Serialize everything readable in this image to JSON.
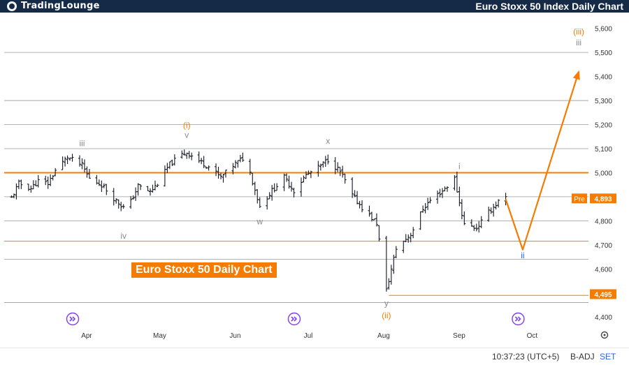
{
  "header": {
    "logo_text": "TradingLounge",
    "logo_icon": "tradinglounge-logo-icon",
    "title": "Euro Stoxx 50 Index Daily Chart"
  },
  "series_label": "Euro Stoxx 50 Daily Chart",
  "footer": {
    "time": "10:37:23 (UTC+5)",
    "adj": "B-ADJ",
    "session": "SET",
    "settings_icon": "gear-icon"
  },
  "colors": {
    "header_bg": "#152a47",
    "accent_orange": "#f57c00",
    "label_gray": "#8a8a8a",
    "bar_black": "#131722",
    "event_purple": "#7e3ff2"
  },
  "chart_data": {
    "type": "ohlc",
    "ylim": [
      4360,
      5660
    ],
    "y_ticks": [
      4400,
      4500,
      4600,
      4700,
      4800,
      4900,
      5000,
      5100,
      5200,
      5300,
      5400,
      5500,
      5600
    ],
    "y_tick_labels": [
      "4,400",
      "4,600",
      "4,700",
      "4,800",
      "5,000",
      "5,100",
      "5,200",
      "5,300",
      "5,400",
      "5,500",
      "5,600"
    ],
    "gridlines": [
      4460,
      4640,
      4800,
      4900,
      5100,
      5200,
      5300,
      5500
    ],
    "x_labels": [
      "Apr",
      "May",
      "Jun",
      "Jul",
      "Aug",
      "Sep",
      "Oct"
    ],
    "x_label_dates": [
      "2024-04-01",
      "2024-05-01",
      "2024-06-01",
      "2024-07-01",
      "2024-08-01",
      "2024-09-01",
      "2024-10-01"
    ],
    "x_range": [
      "2024-03-01",
      "2024-10-27"
    ],
    "price_labels": [
      {
        "text": "Pre",
        "value": 4893
      },
      {
        "text": "4,893",
        "value": 4893
      },
      {
        "text": "4,495",
        "value": 4495
      }
    ],
    "horizontal_levels": [
      {
        "value": 5000,
        "color": "#f57c00",
        "width": "thick"
      },
      {
        "value": 4715,
        "color": "#f57c00",
        "width": "thin"
      },
      {
        "value": 4490,
        "color": "#f57c00",
        "width": "thin",
        "from": "2024-08-06"
      }
    ],
    "bar_anchors": [
      [
        "2024-03-04",
        4895
      ],
      [
        "2024-03-07",
        4955
      ],
      [
        "2024-03-12",
        4935
      ],
      [
        "2024-03-15",
        4965
      ],
      [
        "2024-03-19",
        4955
      ],
      [
        "2024-03-22",
        5010
      ],
      [
        "2024-03-27",
        5065
      ],
      [
        "2024-04-02",
        5030
      ],
      [
        "2024-04-05",
        4975
      ],
      [
        "2024-04-10",
        4950
      ],
      [
        "2024-04-15",
        4895
      ],
      [
        "2024-04-19",
        4855
      ],
      [
        "2024-04-22",
        4880
      ],
      [
        "2024-04-25",
        4945
      ],
      [
        "2024-04-30",
        4920
      ],
      [
        "2024-05-03",
        4955
      ],
      [
        "2024-05-08",
        5035
      ],
      [
        "2024-05-13",
        5075
      ],
      [
        "2024-05-15",
        5085
      ],
      [
        "2024-05-20",
        5050
      ],
      [
        "2024-05-24",
        5025
      ],
      [
        "2024-05-29",
        4980
      ],
      [
        "2024-06-03",
        5030
      ],
      [
        "2024-06-07",
        5060
      ],
      [
        "2024-06-10",
        5000
      ],
      [
        "2024-06-14",
        4860
      ],
      [
        "2024-06-19",
        4925
      ],
      [
        "2024-06-24",
        4980
      ],
      [
        "2024-06-28",
        4925
      ],
      [
        "2024-07-03",
        4990
      ],
      [
        "2024-07-08",
        5020
      ],
      [
        "2024-07-12",
        5055
      ],
      [
        "2024-07-17",
        5005
      ],
      [
        "2024-07-22",
        4905
      ],
      [
        "2024-07-26",
        4855
      ],
      [
        "2024-08-01",
        4790
      ],
      [
        "2024-08-05",
        4510
      ],
      [
        "2024-08-09",
        4685
      ],
      [
        "2024-08-15",
        4745
      ],
      [
        "2024-08-20",
        4850
      ],
      [
        "2024-08-23",
        4885
      ],
      [
        "2024-08-28",
        4925
      ],
      [
        "2024-09-02",
        4975
      ],
      [
        "2024-09-04",
        4875
      ],
      [
        "2024-09-06",
        4785
      ],
      [
        "2024-09-11",
        4770
      ],
      [
        "2024-09-16",
        4835
      ],
      [
        "2024-09-20",
        4880
      ],
      [
        "2024-09-23",
        4893
      ]
    ],
    "projection": [
      {
        "date": "2024-09-23",
        "value": 4890,
        "label": ""
      },
      {
        "date": "2024-09-30",
        "value": 4680,
        "label": "ii"
      },
      {
        "date": "2024-10-23",
        "value": 5420,
        "label": "iii"
      }
    ],
    "wave_labels": [
      {
        "text": "iii",
        "date": "2024-04-02",
        "value": 5110,
        "color": "#8a8a8a"
      },
      {
        "text": "(i)",
        "date": "2024-05-15",
        "value": 5185,
        "color": "#f57c00"
      },
      {
        "text": "v",
        "date": "2024-05-15",
        "value": 5145,
        "color": "#8a8a8a"
      },
      {
        "text": "iv",
        "date": "2024-04-19",
        "value": 4725,
        "color": "#8a8a8a"
      },
      {
        "text": "w",
        "date": "2024-06-14",
        "value": 4785,
        "color": "#8a8a8a"
      },
      {
        "text": "x",
        "date": "2024-07-12",
        "value": 5120,
        "color": "#8a8a8a"
      },
      {
        "text": "i",
        "date": "2024-09-04",
        "value": 5015,
        "color": "#8a8a8a"
      },
      {
        "text": "y",
        "date": "2024-08-05",
        "value": 4445,
        "color": "#8a8a8a"
      },
      {
        "text": "(ii)",
        "date": "2024-08-05",
        "value": 4395,
        "color": "#f57c00"
      },
      {
        "text": "ii",
        "date": "2024-09-30",
        "value": 4645,
        "color": "#2962ff"
      },
      {
        "text": "(iii)",
        "date": "2024-10-23",
        "value": 5575,
        "color": "#f57c00"
      },
      {
        "text": "iii",
        "date": "2024-10-23",
        "value": 5530,
        "color": "#8a8a8a"
      }
    ],
    "event_markers": [
      "2024-04-01",
      "2024-07-01",
      "2024-10-01"
    ]
  }
}
